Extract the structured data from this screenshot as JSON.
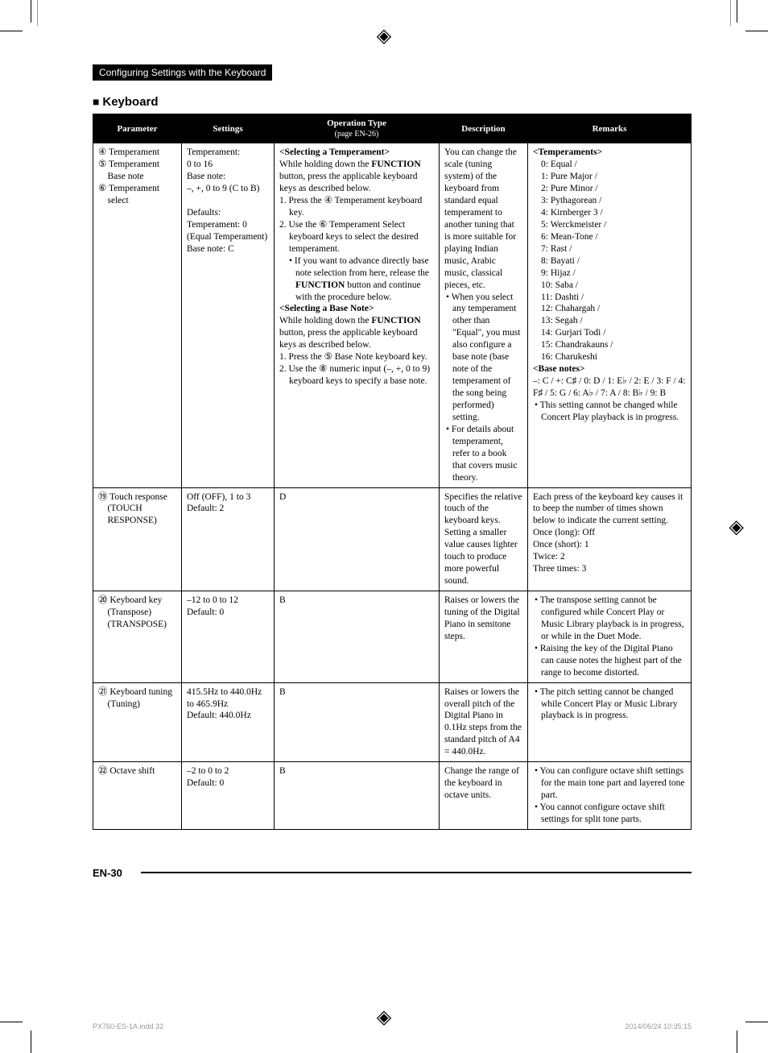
{
  "chapter_bar": "Configuring Settings with the Keyboard",
  "section_title": "Keyboard",
  "table": {
    "headers": {
      "parameter": "Parameter",
      "settings": "Settings",
      "op_type": "Operation Type",
      "op_sub": "(page EN-26)",
      "description": "Description",
      "remarks": "Remarks"
    },
    "rows": [
      {
        "param_lines": [
          "④ Temperament",
          "⑤ Temperament",
          "    Base note",
          "⑥ Temperament",
          "    select"
        ],
        "settings_lines": [
          "Temperament:",
          "0 to 16",
          "Base note:",
          "–, +, 0 to 9 (C to B)",
          "",
          "Defaults:",
          "Temperament: 0",
          "(Equal Temperament)",
          "Base note: C"
        ],
        "op": {
          "h1": "<Selecting a Temperament>",
          "p1": "While holding down the",
          "p2": "FUNCTION",
          "p2b": " button, press the applicable keyboard keys as described below.",
          "n1": "1. Press the ④ Temperament keyboard key.",
          "n2": "2. Use the ⑥ Temperament Select keyboard keys to select the desired temperament.",
          "sb1": "If you want to advance directly base note selection from here, release the ",
          "sb1b": "FUNCTION",
          "sb1c": " button and continue with the procedure below.",
          "h2": "<Selecting a Base Note>",
          "p3": "While holding down the",
          "p4": "FUNCTION",
          "p4b": " button, press the applicable keyboard keys as described below.",
          "n3": "1. Press the ⑤ Base Note keyboard key.",
          "n4": "2. Use the ⑧ numeric input (–, +, 0 to 9) keyboard keys to specify a base note."
        },
        "desc_lines": [
          "You can change the scale (tuning system) of the keyboard from standard equal temperament to another tuning that is more suitable for playing Indian music, Arabic music, classical pieces, etc."
        ],
        "desc_bullets": [
          "When you select any temperament other than \"Equal\", you must also configure a base note (base note of the temperament of the song being performed) setting.",
          "For details about temperament, refer to a book that covers music theory."
        ],
        "rem": {
          "h1": "<Temperaments>",
          "list": [
            "0: Equal /",
            "1: Pure Major /",
            "2: Pure Minor /",
            "3: Pythagorean /",
            "4: Kirnberger 3 /",
            "5: Werckmeister /",
            "6: Mean-Tone /",
            "7: Rast /",
            "8: Bayati /",
            "9: Hijaz /",
            "10: Saba /",
            "11: Dashti /",
            "12: Chahargah /",
            "13: Segah /",
            "14: Gurjari Todi /",
            "15: Chandrakauns /",
            "16: Charukeshi"
          ],
          "h2": "<Base notes>",
          "base": [
            "–: C / +: C♯ / 0: D / 1: E♭ / 2: E / 3: F / 4: F♯ / 5: G / 6: A♭ / 7: A / 8: B♭ / 9: B"
          ],
          "bullet": "This setting cannot be changed while Concert Play playback is in progress."
        }
      },
      {
        "param_lines": [
          "⑲ Touch response",
          "    (TOUCH",
          "    RESPONSE)"
        ],
        "settings_lines": [
          "Off (OFF), 1 to 3",
          "Default: 2"
        ],
        "op_plain": "D",
        "desc_plain": "Specifies the relative touch of the keyboard keys. Setting a smaller value causes lighter touch to produce more powerful sound.",
        "rem_plain_lines": [
          "Each press of the keyboard key causes it to beep the number of times shown below to indicate the current setting.",
          "Once (long): Off",
          "Once (short): 1",
          "Twice: 2",
          "Three times: 3"
        ]
      },
      {
        "param_lines": [
          "⑳ Keyboard key",
          "    (Transpose)",
          "    (TRANSPOSE)"
        ],
        "settings_lines": [
          "–12 to 0 to 12",
          "Default: 0"
        ],
        "op_plain": "B",
        "desc_plain": "Raises or lowers the tuning of the Digital Piano in semitone steps.",
        "rem_bullets": [
          "The transpose setting cannot be configured while Concert Play or Music Library playback is in progress, or while in the Duet Mode.",
          "Raising the key of the Digital Piano can cause notes the highest part of the range to become distorted."
        ]
      },
      {
        "param_lines": [
          "㉑ Keyboard tuning",
          "    (Tuning)"
        ],
        "settings_lines": [
          "415.5Hz to 440.0Hz to 465.9Hz",
          "Default: 440.0Hz"
        ],
        "op_plain": "B",
        "desc_plain": "Raises or lowers the overall pitch of the Digital Piano in 0.1Hz steps from the standard pitch of A4 = 440.0Hz.",
        "rem_bullets": [
          "The pitch setting cannot be changed while Concert Play or Music Library playback is in progress."
        ]
      },
      {
        "param_lines": [
          "㉒ Octave shift"
        ],
        "settings_lines": [
          "–2 to 0 to 2",
          "Default: 0"
        ],
        "op_plain": "B",
        "desc_plain": "Change the range of the keyboard in octave units.",
        "rem_bullets": [
          "You can configure octave shift settings for the main tone part and layered tone part.",
          "You cannot configure octave shift settings for split tone parts."
        ]
      }
    ]
  },
  "page_num": "EN-30",
  "footer_left": "PX760-ES-1A.indd   32",
  "footer_right": "2014/06/24   10:35:15"
}
